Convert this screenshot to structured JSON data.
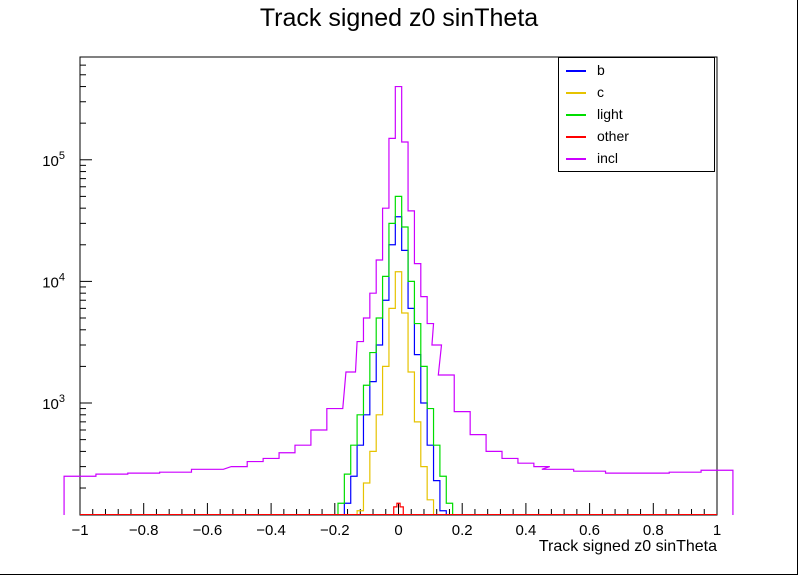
{
  "chart_data": {
    "type": "histogram",
    "title": "Track signed z0 sinTheta",
    "xlabel": "Track signed z0 sinTheta",
    "ylabel": "",
    "y_scale": "log",
    "xlim": [
      -1,
      1
    ],
    "ylim": [
      120,
      700000
    ],
    "grid": false,
    "legend_position": "top-right",
    "x_ticks": [
      -1,
      -0.8,
      -0.6,
      -0.4,
      -0.2,
      0,
      0.2,
      0.4,
      0.6,
      0.8,
      1
    ],
    "x_tick_labels": [
      "−1",
      "−0.8",
      "−0.6",
      "−0.4",
      "−0.2",
      "0",
      "0.2",
      "0.4",
      "0.6",
      "0.8",
      "1"
    ],
    "y_major_ticks": [
      {
        "value": 1000,
        "base": "10",
        "exp": "3"
      },
      {
        "value": 10000,
        "base": "10",
        "exp": "4"
      },
      {
        "value": 100000,
        "base": "10",
        "exp": "5"
      }
    ],
    "series": [
      {
        "name": "b",
        "color": "#0000ff",
        "points": [
          [
            -0.16,
            150
          ],
          [
            -0.14,
            250
          ],
          [
            -0.12,
            450
          ],
          [
            -0.1,
            800
          ],
          [
            -0.08,
            1500
          ],
          [
            -0.06,
            3000
          ],
          [
            -0.04,
            7000
          ],
          [
            -0.02,
            20000
          ],
          [
            0,
            34000
          ],
          [
            0.02,
            18000
          ],
          [
            0.04,
            6000
          ],
          [
            0.06,
            2500
          ],
          [
            0.08,
            1000
          ],
          [
            0.1,
            450
          ],
          [
            0.12,
            230
          ],
          [
            0.14,
            130
          ]
        ]
      },
      {
        "name": "c",
        "color": "#e6c300",
        "points": [
          [
            -0.12,
            130
          ],
          [
            -0.1,
            220
          ],
          [
            -0.08,
            400
          ],
          [
            -0.06,
            800
          ],
          [
            -0.04,
            2000
          ],
          [
            -0.02,
            6000
          ],
          [
            0,
            12000
          ],
          [
            0.02,
            5500
          ],
          [
            0.04,
            1800
          ],
          [
            0.06,
            700
          ],
          [
            0.08,
            300
          ],
          [
            0.1,
            160
          ]
        ]
      },
      {
        "name": "light",
        "color": "#00dd00",
        "points": [
          [
            -0.18,
            150
          ],
          [
            -0.16,
            260
          ],
          [
            -0.14,
            450
          ],
          [
            -0.12,
            800
          ],
          [
            -0.1,
            1400
          ],
          [
            -0.08,
            2600
          ],
          [
            -0.06,
            5000
          ],
          [
            -0.04,
            11000
          ],
          [
            -0.02,
            30000
          ],
          [
            0,
            50000
          ],
          [
            0.02,
            28000
          ],
          [
            0.04,
            10000
          ],
          [
            0.06,
            4500
          ],
          [
            0.08,
            2000
          ],
          [
            0.1,
            900
          ],
          [
            0.12,
            450
          ],
          [
            0.14,
            250
          ],
          [
            0.16,
            150
          ]
        ]
      },
      {
        "name": "other",
        "color": "#ff0000",
        "points": [
          [
            -0.01,
            140
          ],
          [
            0,
            150
          ],
          [
            0.01,
            140
          ]
        ]
      },
      {
        "name": "incl",
        "color": "#cc00ff",
        "points": [
          [
            -1,
            250
          ],
          [
            -0.9,
            260
          ],
          [
            -0.8,
            265
          ],
          [
            -0.7,
            270
          ],
          [
            -0.6,
            285
          ],
          [
            -0.5,
            300
          ],
          [
            -0.45,
            330
          ],
          [
            -0.4,
            350
          ],
          [
            -0.35,
            390
          ],
          [
            -0.3,
            450
          ],
          [
            -0.25,
            600
          ],
          [
            -0.2,
            900
          ],
          [
            -0.15,
            1800
          ],
          [
            -0.12,
            3200
          ],
          [
            -0.1,
            5000
          ],
          [
            -0.08,
            8000
          ],
          [
            -0.06,
            15000
          ],
          [
            -0.04,
            40000
          ],
          [
            -0.02,
            150000
          ],
          [
            0,
            400000
          ],
          [
            0.02,
            140000
          ],
          [
            0.04,
            38000
          ],
          [
            0.06,
            14000
          ],
          [
            0.08,
            7500
          ],
          [
            0.1,
            4500
          ],
          [
            0.12,
            3000
          ],
          [
            0.15,
            1700
          ],
          [
            0.2,
            850
          ],
          [
            0.25,
            550
          ],
          [
            0.3,
            400
          ],
          [
            0.35,
            350
          ],
          [
            0.4,
            320
          ],
          [
            0.45,
            300
          ],
          [
            0.5,
            285
          ],
          [
            0.6,
            275
          ],
          [
            0.7,
            265
          ],
          [
            0.8,
            265
          ],
          [
            0.9,
            270
          ],
          [
            1,
            280
          ]
        ]
      }
    ]
  }
}
